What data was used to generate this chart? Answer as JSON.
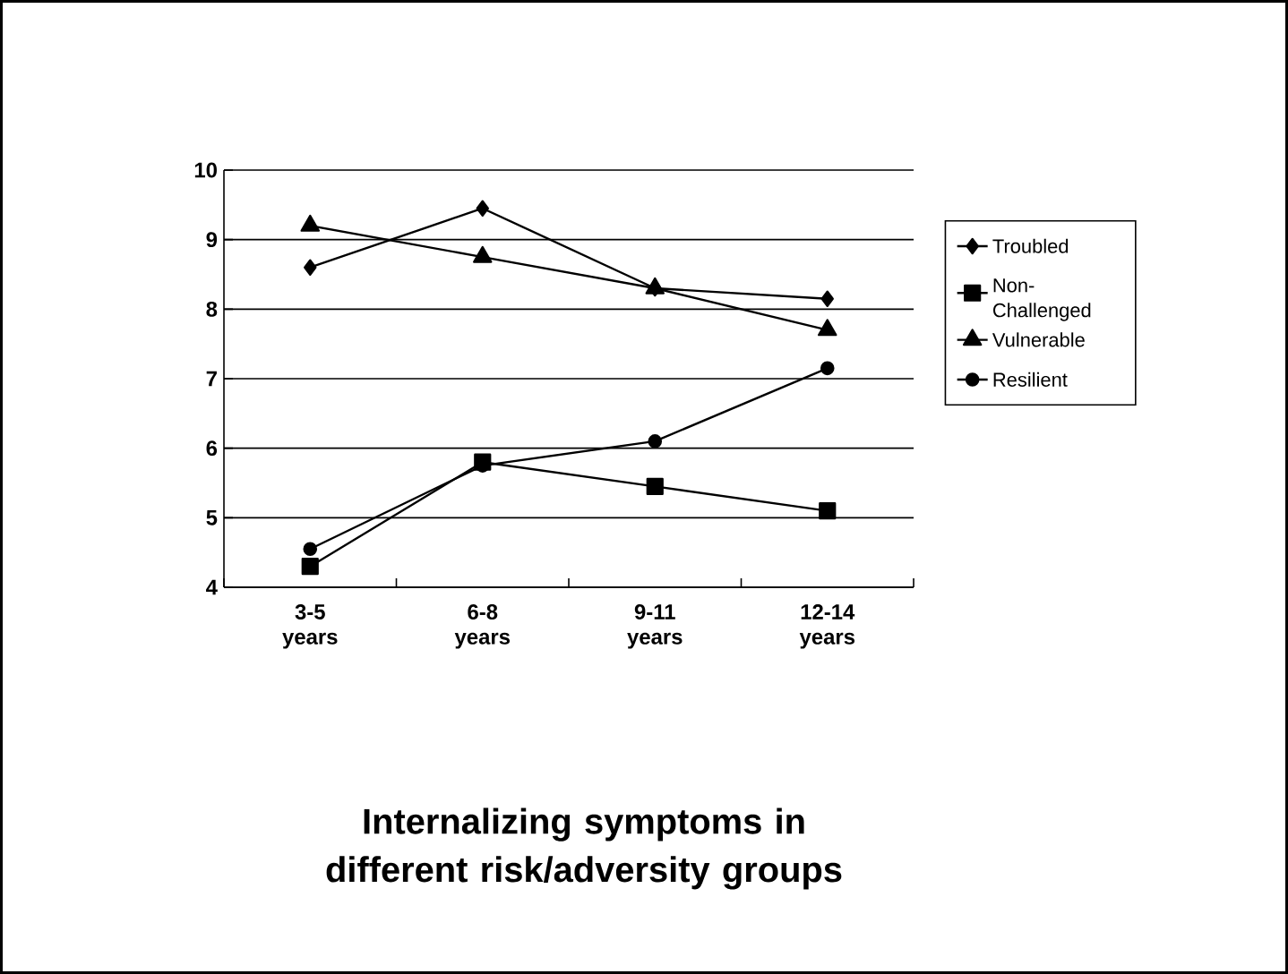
{
  "chart_data": {
    "type": "line",
    "title": "Internalizing symptoms in different risk/adversity groups",
    "categories": [
      "3-5 years",
      "6-8 years",
      "9-11 years",
      "12-14 years"
    ],
    "series": [
      {
        "name": "Troubled",
        "color": "#000000",
        "marker": "diamond",
        "values": [
          8.6,
          9.45,
          8.3,
          8.15
        ]
      },
      {
        "name": "Non-Challenged",
        "color": "#000000",
        "marker": "square",
        "values": [
          4.3,
          5.8,
          5.45,
          5.1
        ]
      },
      {
        "name": "Vulnerable",
        "color": "#000000",
        "marker": "triangle",
        "values": [
          9.2,
          8.75,
          8.3,
          7.7
        ]
      },
      {
        "name": "Resilient",
        "color": "#000000",
        "marker": "circle",
        "values": [
          4.55,
          5.75,
          6.1,
          7.15
        ]
      }
    ],
    "ylim": [
      4,
      10
    ],
    "yticks": [
      4,
      5,
      6,
      7,
      8,
      9,
      10
    ],
    "grid": "y",
    "legend": "right",
    "line_style": "solid"
  }
}
